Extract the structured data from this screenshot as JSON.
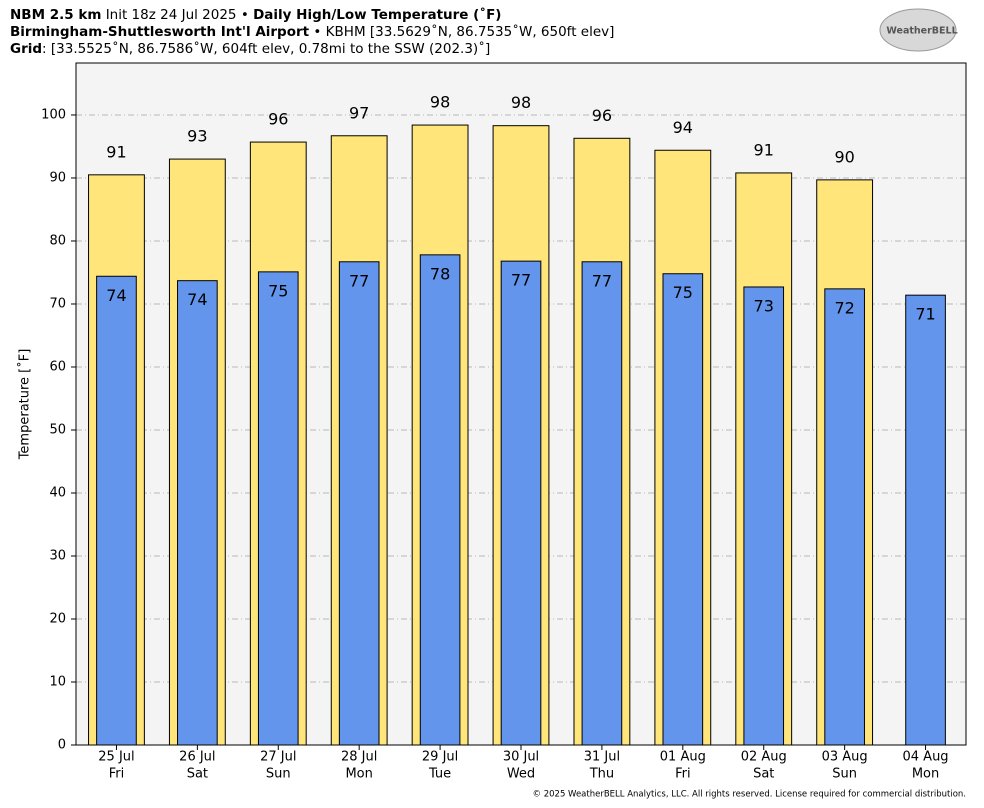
{
  "chart_data": {
    "type": "bar",
    "header": {
      "model": "NBM 2.5 km",
      "init": "Init 18z 24 Jul 2025",
      "separator": "•",
      "product": "Daily High/Low Temperature (˚F)",
      "station": "Birmingham-Shuttlesworth Int'l Airport",
      "station_info": "KBHM [33.5629˚N, 86.7535˚W, 650ft elev]",
      "grid_label": "Grid",
      "grid_info": ": [33.5525˚N, 86.7586˚W, 604ft elev, 0.78mi to the SSW (202.3)˚]"
    },
    "logo": "WeatherBELL",
    "credit": "© 2025 WeatherBELL Analytics, LLC. All rights reserved. License required for commercial distribution.",
    "ylabel": "Temperature [˚F]",
    "categories": [
      "25 Jul",
      "26 Jul",
      "27 Jul",
      "28 Jul",
      "29 Jul",
      "30 Jul",
      "31 Jul",
      "01 Aug",
      "02 Aug",
      "03 Aug",
      "04 Aug"
    ],
    "category_days": [
      "Fri",
      "Sat",
      "Sun",
      "Mon",
      "Tue",
      "Wed",
      "Thu",
      "Fri",
      "Sat",
      "Sun",
      "Mon"
    ],
    "series": [
      {
        "color": "#ffe57a",
        "width": "wide",
        "values": [
          90.5,
          93.0,
          95.7,
          96.7,
          98.4,
          98.3,
          96.3,
          94.4,
          90.8,
          89.7,
          null
        ],
        "value_labels": [
          "91",
          "93",
          "96",
          "97",
          "98",
          "98",
          "96",
          "94",
          "91",
          "90",
          null
        ]
      },
      {
        "color": "#6495ed",
        "width": "narrow",
        "values": [
          74.4,
          73.7,
          75.1,
          76.7,
          77.8,
          76.8,
          76.7,
          74.8,
          72.7,
          72.4,
          71.4
        ],
        "value_labels": [
          "74",
          "74",
          "75",
          "77",
          "78",
          "77",
          "77",
          "75",
          "73",
          "72",
          "71"
        ]
      }
    ],
    "ylim": [
      0,
      108.25
    ],
    "yticks": [
      0,
      10,
      20,
      30,
      40,
      50,
      60,
      70,
      80,
      90,
      100
    ],
    "grid": true
  }
}
